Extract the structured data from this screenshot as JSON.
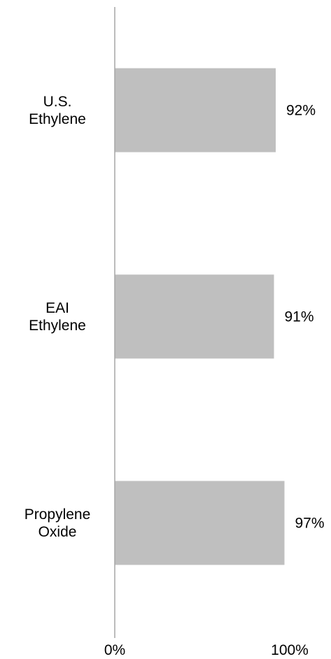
{
  "chart_data": {
    "type": "bar",
    "orientation": "horizontal",
    "categories": [
      [
        "U.S.",
        "Ethylene"
      ],
      [
        "EAI",
        "Ethylene"
      ],
      [
        "Propylene",
        "Oxide"
      ]
    ],
    "values": [
      92,
      91,
      97
    ],
    "value_labels": [
      "92%",
      "91%",
      "97%"
    ],
    "xlim": [
      0,
      100
    ],
    "x_ticks": [
      {
        "value": 0,
        "label": "0%"
      },
      {
        "value": 100,
        "label": "100%"
      }
    ],
    "bar_color": "#BFBFBF",
    "axis_color": "#A6A6A6",
    "grid": false
  }
}
